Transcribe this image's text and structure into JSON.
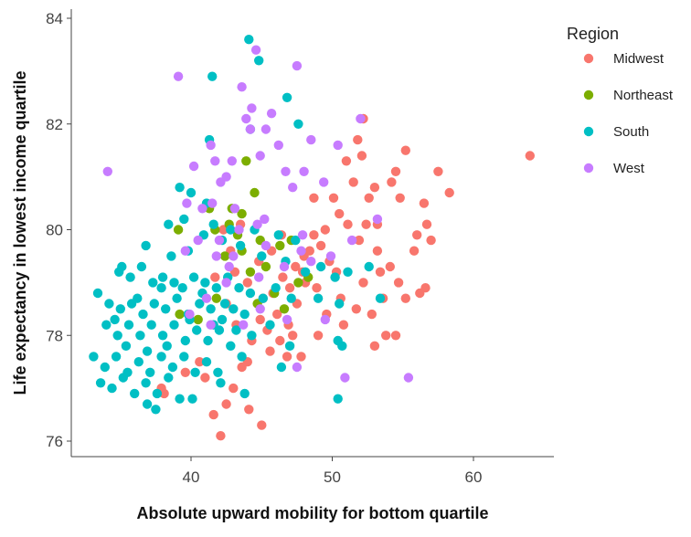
{
  "chart_data": {
    "type": "scatter",
    "xlabel": "Absolute upward mobility for bottom quartile",
    "ylabel": "Life expectancy in lowest income quartile",
    "xlim": [
      32.5,
      66
    ],
    "ylim": [
      75.7,
      84.2
    ],
    "xticks": [
      40,
      50,
      60
    ],
    "yticks": [
      76,
      78,
      80,
      82,
      84
    ],
    "xtick_labels": [
      "40",
      "50",
      "60"
    ],
    "ytick_labels": [
      "76",
      "78",
      "80",
      "82",
      "84"
    ],
    "grid": false,
    "legend": {
      "title": "Region",
      "placement": "right",
      "entries": [
        "Midwest",
        "Northeast",
        "South",
        "West"
      ]
    },
    "series": [
      {
        "name": "Midwest",
        "color": "#F8766D",
        "points": [
          [
            64.0,
            81.4
          ],
          [
            57.5,
            81.1
          ],
          [
            58.3,
            80.7
          ],
          [
            56.5,
            80.5
          ],
          [
            56.0,
            79.9
          ],
          [
            55.8,
            79.6
          ],
          [
            56.6,
            78.9
          ],
          [
            56.2,
            78.8
          ],
          [
            55.2,
            81.5
          ],
          [
            54.5,
            81.1
          ],
          [
            54.2,
            80.9
          ],
          [
            54.8,
            80.6
          ],
          [
            53.0,
            80.8
          ],
          [
            52.2,
            82.1
          ],
          [
            51.8,
            81.7
          ],
          [
            52.1,
            81.4
          ],
          [
            51.0,
            81.3
          ],
          [
            51.5,
            80.9
          ],
          [
            52.6,
            80.6
          ],
          [
            50.1,
            80.6
          ],
          [
            50.5,
            80.3
          ],
          [
            49.5,
            80.0
          ],
          [
            48.7,
            80.6
          ],
          [
            49.2,
            79.7
          ],
          [
            48.4,
            79.6
          ],
          [
            48.0,
            79.5
          ],
          [
            47.4,
            79.3
          ],
          [
            47.0,
            78.9
          ],
          [
            46.5,
            79.1
          ],
          [
            45.8,
            78.8
          ],
          [
            45.1,
            78.7
          ],
          [
            44.9,
            78.3
          ],
          [
            44.3,
            77.9
          ],
          [
            44.0,
            77.5
          ],
          [
            43.6,
            77.4
          ],
          [
            43.0,
            77.0
          ],
          [
            42.5,
            76.7
          ],
          [
            44.1,
            76.6
          ],
          [
            45.0,
            76.3
          ],
          [
            42.1,
            76.1
          ],
          [
            53.2,
            79.6
          ],
          [
            54.1,
            79.3
          ],
          [
            53.6,
            78.7
          ],
          [
            52.8,
            78.4
          ],
          [
            51.7,
            78.5
          ],
          [
            52.2,
            79.0
          ],
          [
            50.6,
            78.7
          ],
          [
            49.6,
            78.4
          ],
          [
            48.9,
            78.9
          ],
          [
            48.1,
            79.0
          ],
          [
            47.5,
            78.6
          ],
          [
            46.9,
            78.2
          ],
          [
            46.1,
            78.4
          ],
          [
            45.4,
            78.1
          ],
          [
            45.6,
            77.7
          ],
          [
            46.3,
            77.9
          ],
          [
            47.2,
            78.0
          ],
          [
            53.0,
            77.8
          ],
          [
            53.8,
            78.0
          ],
          [
            54.5,
            78.0
          ],
          [
            41.6,
            76.5
          ],
          [
            40.6,
            77.5
          ],
          [
            41.0,
            77.2
          ],
          [
            39.6,
            77.3
          ],
          [
            37.9,
            77.0
          ],
          [
            38.1,
            76.9
          ],
          [
            48.7,
            79.9
          ],
          [
            50.3,
            79.2
          ],
          [
            51.1,
            80.1
          ],
          [
            52.4,
            80.1
          ],
          [
            53.2,
            80.1
          ],
          [
            55.2,
            78.7
          ],
          [
            49.0,
            78.0
          ],
          [
            47.8,
            77.6
          ],
          [
            46.8,
            77.6
          ],
          [
            50.8,
            78.2
          ],
          [
            43.2,
            78.2
          ],
          [
            42.5,
            78.6
          ],
          [
            44.0,
            79.0
          ],
          [
            43.1,
            79.2
          ],
          [
            42.8,
            79.6
          ],
          [
            41.7,
            79.1
          ],
          [
            42.3,
            80.0
          ],
          [
            43.5,
            80.1
          ],
          [
            44.8,
            79.4
          ],
          [
            45.7,
            79.6
          ],
          [
            46.4,
            79.9
          ],
          [
            47.9,
            79.2
          ],
          [
            49.8,
            79.4
          ],
          [
            51.9,
            79.8
          ],
          [
            56.7,
            80.1
          ],
          [
            57.0,
            79.8
          ],
          [
            53.4,
            79.2
          ],
          [
            54.7,
            79.0
          ]
        ]
      },
      {
        "name": "Northeast",
        "color": "#7CAE00",
        "points": [
          [
            43.9,
            81.3
          ],
          [
            44.5,
            80.7
          ],
          [
            42.9,
            80.4
          ],
          [
            43.6,
            80.3
          ],
          [
            42.7,
            80.1
          ],
          [
            41.7,
            80.0
          ],
          [
            39.1,
            80.0
          ],
          [
            43.3,
            79.9
          ],
          [
            42.4,
            79.5
          ],
          [
            44.9,
            79.8
          ],
          [
            46.3,
            79.7
          ],
          [
            47.1,
            79.8
          ],
          [
            44.2,
            79.2
          ],
          [
            45.3,
            79.3
          ],
          [
            47.6,
            79.0
          ],
          [
            48.3,
            79.1
          ],
          [
            45.9,
            78.8
          ],
          [
            44.7,
            78.6
          ],
          [
            41.8,
            78.7
          ],
          [
            40.5,
            78.3
          ],
          [
            39.2,
            78.4
          ],
          [
            46.6,
            78.5
          ],
          [
            41.3,
            80.4
          ],
          [
            43.6,
            79.6
          ]
        ]
      },
      {
        "name": "South",
        "color": "#00BFC4",
        "points": [
          [
            44.1,
            83.6
          ],
          [
            44.8,
            83.2
          ],
          [
            41.5,
            82.9
          ],
          [
            46.8,
            82.5
          ],
          [
            47.6,
            82.0
          ],
          [
            44.2,
            81.9
          ],
          [
            41.3,
            81.7
          ],
          [
            39.2,
            80.8
          ],
          [
            40.0,
            80.7
          ],
          [
            41.1,
            80.5
          ],
          [
            39.5,
            80.2
          ],
          [
            41.6,
            80.1
          ],
          [
            42.8,
            80.0
          ],
          [
            44.5,
            80.0
          ],
          [
            46.2,
            79.9
          ],
          [
            47.4,
            79.8
          ],
          [
            38.4,
            80.1
          ],
          [
            39.8,
            79.6
          ],
          [
            40.9,
            79.9
          ],
          [
            42.2,
            79.8
          ],
          [
            43.5,
            79.7
          ],
          [
            45.0,
            79.5
          ],
          [
            46.7,
            79.4
          ],
          [
            48.1,
            79.2
          ],
          [
            34.9,
            79.2
          ],
          [
            35.7,
            79.1
          ],
          [
            36.5,
            79.3
          ],
          [
            37.3,
            79.0
          ],
          [
            38.0,
            79.1
          ],
          [
            38.8,
            79.0
          ],
          [
            39.4,
            78.9
          ],
          [
            40.2,
            79.1
          ],
          [
            41.0,
            79.0
          ],
          [
            41.8,
            78.9
          ],
          [
            42.6,
            79.1
          ],
          [
            43.4,
            78.9
          ],
          [
            44.2,
            78.8
          ],
          [
            45.1,
            78.7
          ],
          [
            46.0,
            78.9
          ],
          [
            47.1,
            78.7
          ],
          [
            33.4,
            78.8
          ],
          [
            34.2,
            78.6
          ],
          [
            35.0,
            78.5
          ],
          [
            35.8,
            78.6
          ],
          [
            36.6,
            78.4
          ],
          [
            37.4,
            78.6
          ],
          [
            38.2,
            78.5
          ],
          [
            39.0,
            78.7
          ],
          [
            39.8,
            78.4
          ],
          [
            40.6,
            78.6
          ],
          [
            41.4,
            78.5
          ],
          [
            42.2,
            78.3
          ],
          [
            43.0,
            78.5
          ],
          [
            43.8,
            78.4
          ],
          [
            34.0,
            78.2
          ],
          [
            34.8,
            78.0
          ],
          [
            35.6,
            78.2
          ],
          [
            36.4,
            78.0
          ],
          [
            37.2,
            78.2
          ],
          [
            38.0,
            78.0
          ],
          [
            38.8,
            78.2
          ],
          [
            39.6,
            77.9
          ],
          [
            40.4,
            78.1
          ],
          [
            41.2,
            77.9
          ],
          [
            42.0,
            78.1
          ],
          [
            42.8,
            77.8
          ],
          [
            33.1,
            77.6
          ],
          [
            33.9,
            77.4
          ],
          [
            34.7,
            77.6
          ],
          [
            35.5,
            77.3
          ],
          [
            36.3,
            77.5
          ],
          [
            37.1,
            77.3
          ],
          [
            37.9,
            77.6
          ],
          [
            38.7,
            77.4
          ],
          [
            39.5,
            77.6
          ],
          [
            40.3,
            77.3
          ],
          [
            41.1,
            77.5
          ],
          [
            41.9,
            77.3
          ],
          [
            33.6,
            77.1
          ],
          [
            34.4,
            77.0
          ],
          [
            35.2,
            77.2
          ],
          [
            36.0,
            76.9
          ],
          [
            36.8,
            77.1
          ],
          [
            37.6,
            76.9
          ],
          [
            38.4,
            77.2
          ],
          [
            39.2,
            76.8
          ],
          [
            37.5,
            76.6
          ],
          [
            36.9,
            76.7
          ],
          [
            40.1,
            76.8
          ],
          [
            42.1,
            77.1
          ],
          [
            43.6,
            77.6
          ],
          [
            44.3,
            78.0
          ],
          [
            45.6,
            78.2
          ],
          [
            46.4,
            77.4
          ],
          [
            47.0,
            77.8
          ],
          [
            49.2,
            79.3
          ],
          [
            50.2,
            79.1
          ],
          [
            51.1,
            79.2
          ],
          [
            52.6,
            79.3
          ],
          [
            53.4,
            78.7
          ],
          [
            50.5,
            78.6
          ],
          [
            49.0,
            78.7
          ],
          [
            50.4,
            77.9
          ],
          [
            50.7,
            77.8
          ],
          [
            50.4,
            76.8
          ],
          [
            43.8,
            76.9
          ],
          [
            35.1,
            79.3
          ],
          [
            36.8,
            79.7
          ],
          [
            38.6,
            79.5
          ],
          [
            37.9,
            78.9
          ],
          [
            36.2,
            78.7
          ],
          [
            34.6,
            78.3
          ],
          [
            35.4,
            77.8
          ],
          [
            36.9,
            77.7
          ],
          [
            38.3,
            77.8
          ],
          [
            39.9,
            78.3
          ],
          [
            40.8,
            78.8
          ],
          [
            41.6,
            78.2
          ],
          [
            42.4,
            78.6
          ],
          [
            43.2,
            78.1
          ]
        ]
      },
      {
        "name": "West",
        "color": "#C77CFF",
        "points": [
          [
            44.6,
            83.4
          ],
          [
            47.5,
            83.1
          ],
          [
            43.6,
            82.7
          ],
          [
            44.3,
            82.3
          ],
          [
            45.7,
            82.2
          ],
          [
            43.9,
            82.1
          ],
          [
            44.2,
            81.9
          ],
          [
            45.3,
            81.9
          ],
          [
            39.1,
            82.9
          ],
          [
            48.5,
            81.7
          ],
          [
            50.4,
            81.6
          ],
          [
            52.0,
            82.1
          ],
          [
            46.2,
            81.6
          ],
          [
            41.4,
            81.6
          ],
          [
            42.9,
            81.3
          ],
          [
            42.5,
            81.0
          ],
          [
            41.7,
            81.3
          ],
          [
            40.2,
            81.2
          ],
          [
            34.1,
            81.1
          ],
          [
            44.9,
            81.4
          ],
          [
            46.7,
            81.1
          ],
          [
            47.2,
            80.8
          ],
          [
            48.0,
            81.1
          ],
          [
            49.4,
            80.9
          ],
          [
            42.1,
            80.9
          ],
          [
            41.5,
            80.5
          ],
          [
            40.8,
            80.4
          ],
          [
            39.7,
            80.5
          ],
          [
            43.1,
            80.4
          ],
          [
            44.7,
            80.1
          ],
          [
            45.2,
            80.2
          ],
          [
            43.4,
            80.0
          ],
          [
            42.0,
            79.8
          ],
          [
            40.5,
            79.8
          ],
          [
            39.6,
            79.6
          ],
          [
            41.8,
            79.5
          ],
          [
            43.0,
            79.5
          ],
          [
            45.3,
            79.7
          ],
          [
            47.8,
            79.6
          ],
          [
            51.4,
            79.8
          ],
          [
            53.2,
            80.2
          ],
          [
            49.9,
            79.5
          ],
          [
            48.5,
            79.4
          ],
          [
            46.6,
            79.3
          ],
          [
            44.8,
            79.1
          ],
          [
            42.5,
            79.0
          ],
          [
            41.1,
            78.7
          ],
          [
            39.9,
            78.4
          ],
          [
            41.4,
            78.2
          ],
          [
            43.7,
            78.2
          ],
          [
            44.9,
            78.5
          ],
          [
            46.8,
            78.3
          ],
          [
            47.5,
            77.4
          ],
          [
            49.5,
            78.3
          ],
          [
            50.9,
            77.2
          ],
          [
            55.4,
            77.2
          ],
          [
            42.7,
            79.3
          ],
          [
            47.9,
            79.9
          ]
        ]
      }
    ]
  }
}
